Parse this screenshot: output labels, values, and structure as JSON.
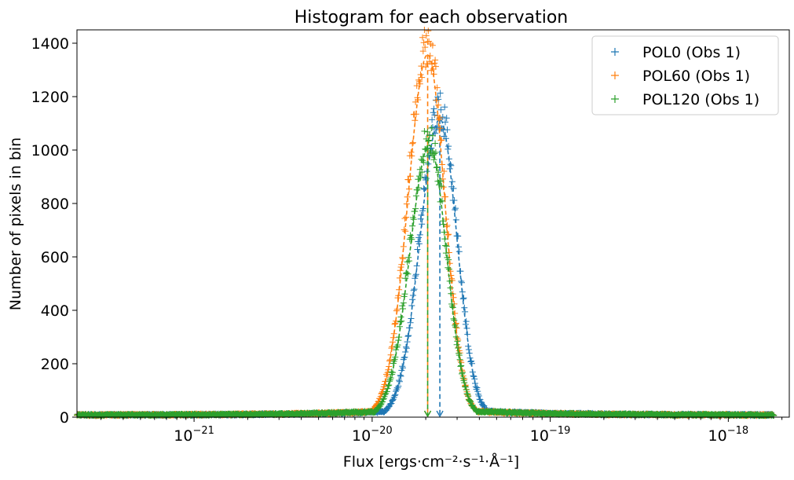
{
  "chart_data": {
    "type": "scatter",
    "title": "Histogram for each observation",
    "xlabel": "Flux [ergs·cm⁻²·s⁻¹·Å⁻¹]",
    "ylabel": "Number of pixels in bin",
    "xscale": "log",
    "xlim": [
      2.2e-22,
      2.2e-18
    ],
    "ylim": [
      0,
      1450
    ],
    "xticks": [
      {
        "base": "10",
        "exp": "−21",
        "value": 1e-21
      },
      {
        "base": "10",
        "exp": "−20",
        "value": 1e-20
      },
      {
        "base": "10",
        "exp": "−19",
        "value": 1e-19
      },
      {
        "base": "10",
        "exp": "−18",
        "value": 1e-18
      }
    ],
    "yticks": [
      "0",
      "200",
      "400",
      "600",
      "800",
      "1000",
      "1200",
      "1400"
    ],
    "legend_position": "top-right",
    "series": [
      {
        "name": "POL0 (Obs 1)",
        "color": "#1f77b4",
        "peak_x": 2.4e-20,
        "peak_y": 1150,
        "median_x": 2.4e-20,
        "x_range": [
          2.2e-22,
          1.8e-18
        ]
      },
      {
        "name": "POL60 (Obs 1)",
        "color": "#ff7f0e",
        "peak_x": 2.05e-20,
        "peak_y": 1400,
        "median_x": 2.05e-20,
        "x_range": [
          2.2e-22,
          1.8e-18
        ]
      },
      {
        "name": "POL120 (Obs 1)",
        "color": "#2ca02c",
        "peak_x": 2.1e-20,
        "peak_y": 1050,
        "median_x": 2.05e-20,
        "x_range": [
          2.2e-22,
          1.8e-18
        ]
      }
    ]
  }
}
